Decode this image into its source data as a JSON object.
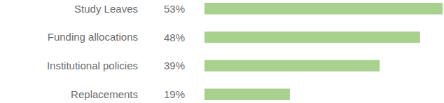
{
  "chart_data": {
    "type": "bar",
    "orientation": "horizontal",
    "categories": [
      "Study Leaves",
      "Funding allocations",
      "Institutional policies",
      "Replacements"
    ],
    "values": [
      53,
      48,
      39,
      19
    ],
    "value_labels": [
      "53%",
      "48%",
      "39%",
      "19%"
    ],
    "data_labels": true,
    "color": "#a9d18e",
    "xlim": [
      0,
      53
    ],
    "tick_labels": "y",
    "grid": false
  }
}
